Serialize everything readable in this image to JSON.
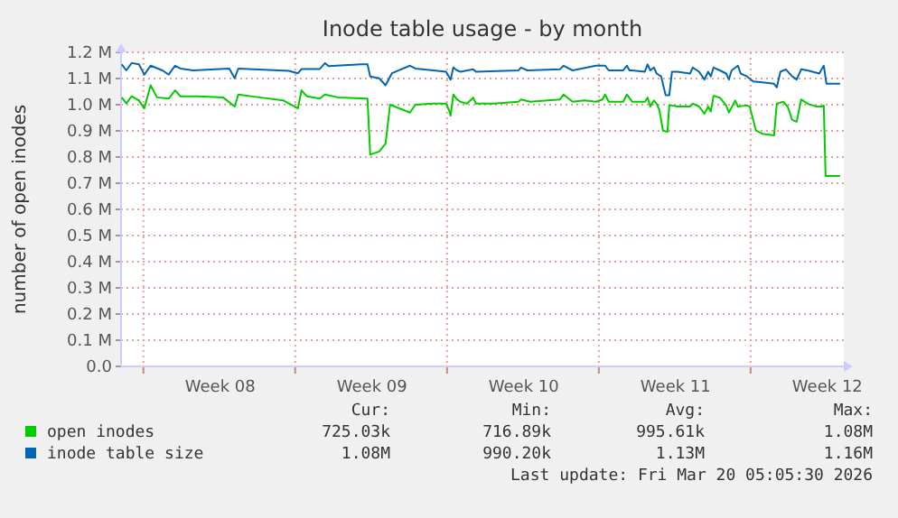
{
  "chart_data": {
    "type": "line",
    "title": "Inode table usage - by month",
    "ylabel": "number of open inodes",
    "xlim": [
      "2026-02-14T23:15",
      "2026-03-20T07:10"
    ],
    "ylim": [
      0,
      1.2
    ],
    "xticks": [
      {
        "value": "2026-02-16",
        "label": null
      },
      {
        "value": "2026-02-19T13:00",
        "label": "Week 08"
      },
      {
        "value": "2026-02-23",
        "label": null
      },
      {
        "value": "2026-02-26T13:00",
        "label": "Week 09"
      },
      {
        "value": "2026-03-02",
        "label": null
      },
      {
        "value": "2026-03-05T13:00",
        "label": "Week 10"
      },
      {
        "value": "2026-03-09",
        "label": null
      },
      {
        "value": "2026-03-12T13:00",
        "label": "Week 11"
      },
      {
        "value": "2026-03-16",
        "label": null
      },
      {
        "value": "2026-03-19T13:00",
        "label": "Week 12"
      }
    ],
    "yticks": [
      {
        "value": 0,
        "label": "0.0"
      },
      {
        "value": 0.1,
        "label": "0.1 M"
      },
      {
        "value": 0.2,
        "label": "0.2 M"
      },
      {
        "value": 0.3,
        "label": "0.3 M"
      },
      {
        "value": 0.4,
        "label": "0.4 M"
      },
      {
        "value": 0.5,
        "label": "0.5 M"
      },
      {
        "value": 0.6,
        "label": "0.6 M"
      },
      {
        "value": 0.7,
        "label": "0.7 M"
      },
      {
        "value": 0.8,
        "label": "0.8 M"
      },
      {
        "value": 0.9,
        "label": "0.9 M"
      },
      {
        "value": 1.0,
        "label": "1.0 M"
      },
      {
        "value": 1.1,
        "label": "1.1 M"
      },
      {
        "value": 1.2,
        "label": "1.2 M"
      }
    ],
    "grid": true,
    "legend": "bottom left",
    "marker": "none",
    "line_style": "solid",
    "series": [
      {
        "name": "open inodes",
        "color": "#00cc00",
        "x": [
          "2026-02-15T00:00",
          "2026-02-15T05:00",
          "2026-02-15T11:00",
          "2026-02-15T19:00",
          "2026-02-16T01:00",
          "2026-02-16T08:00",
          "2026-02-16T15:00",
          "2026-02-17T04:00",
          "2026-02-17T11:00",
          "2026-02-17T17:00",
          "2026-02-18T13:00",
          "2026-02-19T16:00",
          "2026-02-20T05:00",
          "2026-02-20T09:00",
          "2026-02-21T08:00",
          "2026-02-22T11:00",
          "2026-02-23T03:00",
          "2026-02-23T07:00",
          "2026-02-23T13:00",
          "2026-02-24T03:00",
          "2026-02-24T09:00",
          "2026-02-24T23:00",
          "2026-02-26T08:00",
          "2026-02-26T11:00",
          "2026-02-26T21:00",
          "2026-02-27T04:00",
          "2026-02-27T09:00",
          "2026-02-28T07:00",
          "2026-02-28T13:00",
          "2026-03-01T09:00",
          "2026-03-01T23:00",
          "2026-03-02T02:00",
          "2026-03-02T04:00",
          "2026-03-02T07:00",
          "2026-03-02T11:00",
          "2026-03-02T15:00",
          "2026-03-02T22:00",
          "2026-03-03T05:00",
          "2026-03-03T08:00",
          "2026-03-04T04:00",
          "2026-03-05T07:00",
          "2026-03-05T10:00",
          "2026-03-05T20:00",
          "2026-03-07T05:00",
          "2026-03-07T09:00",
          "2026-03-07T19:00",
          "2026-03-08T08:00",
          "2026-03-08T21:00",
          "2026-03-09T04:00",
          "2026-03-09T07:00",
          "2026-03-09T11:00",
          "2026-03-10T03:00",
          "2026-03-10T07:00",
          "2026-03-10T13:00",
          "2026-03-11T03:00",
          "2026-03-11T06:00",
          "2026-03-11T09:00",
          "2026-03-11T13:00",
          "2026-03-11T16:00",
          "2026-03-11T19:00",
          "2026-03-11T23:00",
          "2026-03-12T04:00",
          "2026-03-12T06:00",
          "2026-03-12T09:00",
          "2026-03-12T15:00",
          "2026-03-13T05:00",
          "2026-03-13T08:00",
          "2026-03-13T15:00",
          "2026-03-13T21:00",
          "2026-03-14T01:00",
          "2026-03-14T04:00",
          "2026-03-14T07:00",
          "2026-03-14T14:00",
          "2026-03-14T21:00",
          "2026-03-15T00:00",
          "2026-03-15T07:00",
          "2026-03-15T10:00",
          "2026-03-15T20:00",
          "2026-03-15T23:00",
          "2026-03-16T06:00",
          "2026-03-16T13:00",
          "2026-03-17T02:00",
          "2026-03-17T05:00",
          "2026-03-17T12:00",
          "2026-03-17T17:00",
          "2026-03-17T22:00",
          "2026-03-18T03:00",
          "2026-03-18T08:00",
          "2026-03-18T15:00",
          "2026-03-19T01:00",
          "2026-03-19T07:00",
          "2026-03-19T09:00",
          "2026-03-19T11:00",
          "2026-03-20T03:00"
        ],
        "values": [
          1.028,
          1.005,
          1.032,
          1.016,
          0.986,
          1.074,
          1.028,
          1.023,
          1.055,
          1.032,
          1.032,
          1.028,
          0.993,
          1.039,
          1.028,
          1.016,
          0.986,
          1.055,
          1.032,
          1.023,
          1.039,
          1.028,
          1.023,
          0.809,
          0.821,
          0.851,
          1.0,
          0.97,
          1.0,
          1.004,
          1.004,
          0.981,
          0.958,
          1.039,
          1.02,
          1.011,
          1.004,
          1.027,
          1.004,
          1.004,
          1.011,
          1.02,
          1.011,
          1.02,
          1.039,
          1.011,
          1.016,
          1.011,
          1.02,
          1.039,
          1.011,
          1.011,
          1.039,
          1.011,
          1.011,
          1.027,
          0.993,
          1.016,
          1.004,
          0.981,
          0.901,
          0.896,
          0.997,
          0.997,
          0.993,
          0.993,
          1.004,
          0.993,
          0.965,
          0.993,
          0.974,
          1.034,
          1.027,
          0.997,
          0.97,
          1.016,
          0.993,
          0.997,
          0.993,
          0.901,
          0.889,
          0.883,
          1.004,
          1.011,
          0.993,
          0.942,
          0.935,
          1.02,
          1.004,
          0.993,
          0.993,
          0.997,
          0.728,
          0.728
        ]
      },
      {
        "name": "inode table size",
        "color": "#0066b3",
        "x": [
          "2026-02-15T00:00",
          "2026-02-15T05:00",
          "2026-02-15T11:00",
          "2026-02-15T19:00",
          "2026-02-16T01:00",
          "2026-02-16T08:00",
          "2026-02-16T21:00",
          "2026-02-17T04:00",
          "2026-02-17T11:00",
          "2026-02-17T17:00",
          "2026-02-18T07:00",
          "2026-02-19T23:00",
          "2026-02-20T05:00",
          "2026-02-20T09:00",
          "2026-02-22T17:00",
          "2026-02-23T03:00",
          "2026-02-23T07:00",
          "2026-02-24T03:00",
          "2026-02-24T09:00",
          "2026-02-24T13:00",
          "2026-02-26T01:00",
          "2026-02-26T08:00",
          "2026-02-26T11:00",
          "2026-02-26T21:00",
          "2026-02-27T04:00",
          "2026-02-27T11:00",
          "2026-02-28T07:00",
          "2026-02-28T13:00",
          "2026-03-01T09:00",
          "2026-03-01T23:00",
          "2026-03-02T02:00",
          "2026-03-02T04:00",
          "2026-03-02T07:00",
          "2026-03-02T11:00",
          "2026-03-02T15:00",
          "2026-03-03T05:00",
          "2026-03-03T08:00",
          "2026-03-05T07:00",
          "2026-03-05T10:00",
          "2026-03-05T17:00",
          "2026-03-07T05:00",
          "2026-03-07T09:00",
          "2026-03-07T19:00",
          "2026-03-08T21:00",
          "2026-03-09T07:00",
          "2026-03-09T11:00",
          "2026-03-10T03:00",
          "2026-03-10T07:00",
          "2026-03-10T10:00",
          "2026-03-10T13:00",
          "2026-03-11T03:00",
          "2026-03-11T06:00",
          "2026-03-11T09:00",
          "2026-03-11T13:00",
          "2026-03-11T16:00",
          "2026-03-11T21:00",
          "2026-03-12T02:00",
          "2026-03-12T06:00",
          "2026-03-12T09:00",
          "2026-03-12T15:00",
          "2026-03-13T05:00",
          "2026-03-13T08:00",
          "2026-03-13T15:00",
          "2026-03-13T21:00",
          "2026-03-14T01:00",
          "2026-03-14T04:00",
          "2026-03-14T07:00",
          "2026-03-14T14:00",
          "2026-03-14T21:00",
          "2026-03-15T00:00",
          "2026-03-15T03:00",
          "2026-03-15T10:00",
          "2026-03-15T13:00",
          "2026-03-15T20:00",
          "2026-03-16T03:00",
          "2026-03-16T13:00",
          "2026-03-17T02:00",
          "2026-03-17T05:00",
          "2026-03-17T09:00",
          "2026-03-17T15:00",
          "2026-03-17T22:00",
          "2026-03-18T03:00",
          "2026-03-18T08:00",
          "2026-03-18T15:00",
          "2026-03-19T04:00",
          "2026-03-19T09:00",
          "2026-03-19T12:00",
          "2026-03-20T03:00"
        ],
        "values": [
          1.154,
          1.131,
          1.159,
          1.154,
          1.115,
          1.149,
          1.131,
          1.115,
          1.149,
          1.138,
          1.131,
          1.138,
          1.101,
          1.138,
          1.129,
          1.12,
          1.136,
          1.136,
          1.159,
          1.147,
          1.154,
          1.154,
          1.108,
          1.101,
          1.074,
          1.12,
          1.149,
          1.138,
          1.131,
          1.126,
          1.108,
          1.096,
          1.142,
          1.131,
          1.126,
          1.135,
          1.126,
          1.131,
          1.142,
          1.131,
          1.135,
          1.149,
          1.131,
          1.149,
          1.149,
          1.131,
          1.131,
          1.149,
          1.131,
          1.131,
          1.126,
          1.154,
          1.131,
          1.142,
          1.119,
          1.108,
          1.036,
          1.036,
          1.126,
          1.126,
          1.119,
          1.142,
          1.126,
          1.096,
          1.126,
          1.108,
          1.142,
          1.131,
          1.119,
          1.096,
          1.131,
          1.149,
          1.119,
          1.108,
          1.089,
          1.085,
          1.08,
          1.066,
          1.126,
          1.135,
          1.108,
          1.096,
          1.135,
          1.131,
          1.119,
          1.149,
          1.08,
          1.08
        ]
      }
    ],
    "annotations": [
      "Cur:",
      "Min:",
      "Avg:",
      "Max:",
      "725.03k",
      "716.89k",
      "995.61k",
      "1.08M",
      "1.08M",
      "990.20k",
      "1.13M",
      "1.16M",
      "Last update: Fri Mar 20 05:05:30 2026"
    ]
  }
}
